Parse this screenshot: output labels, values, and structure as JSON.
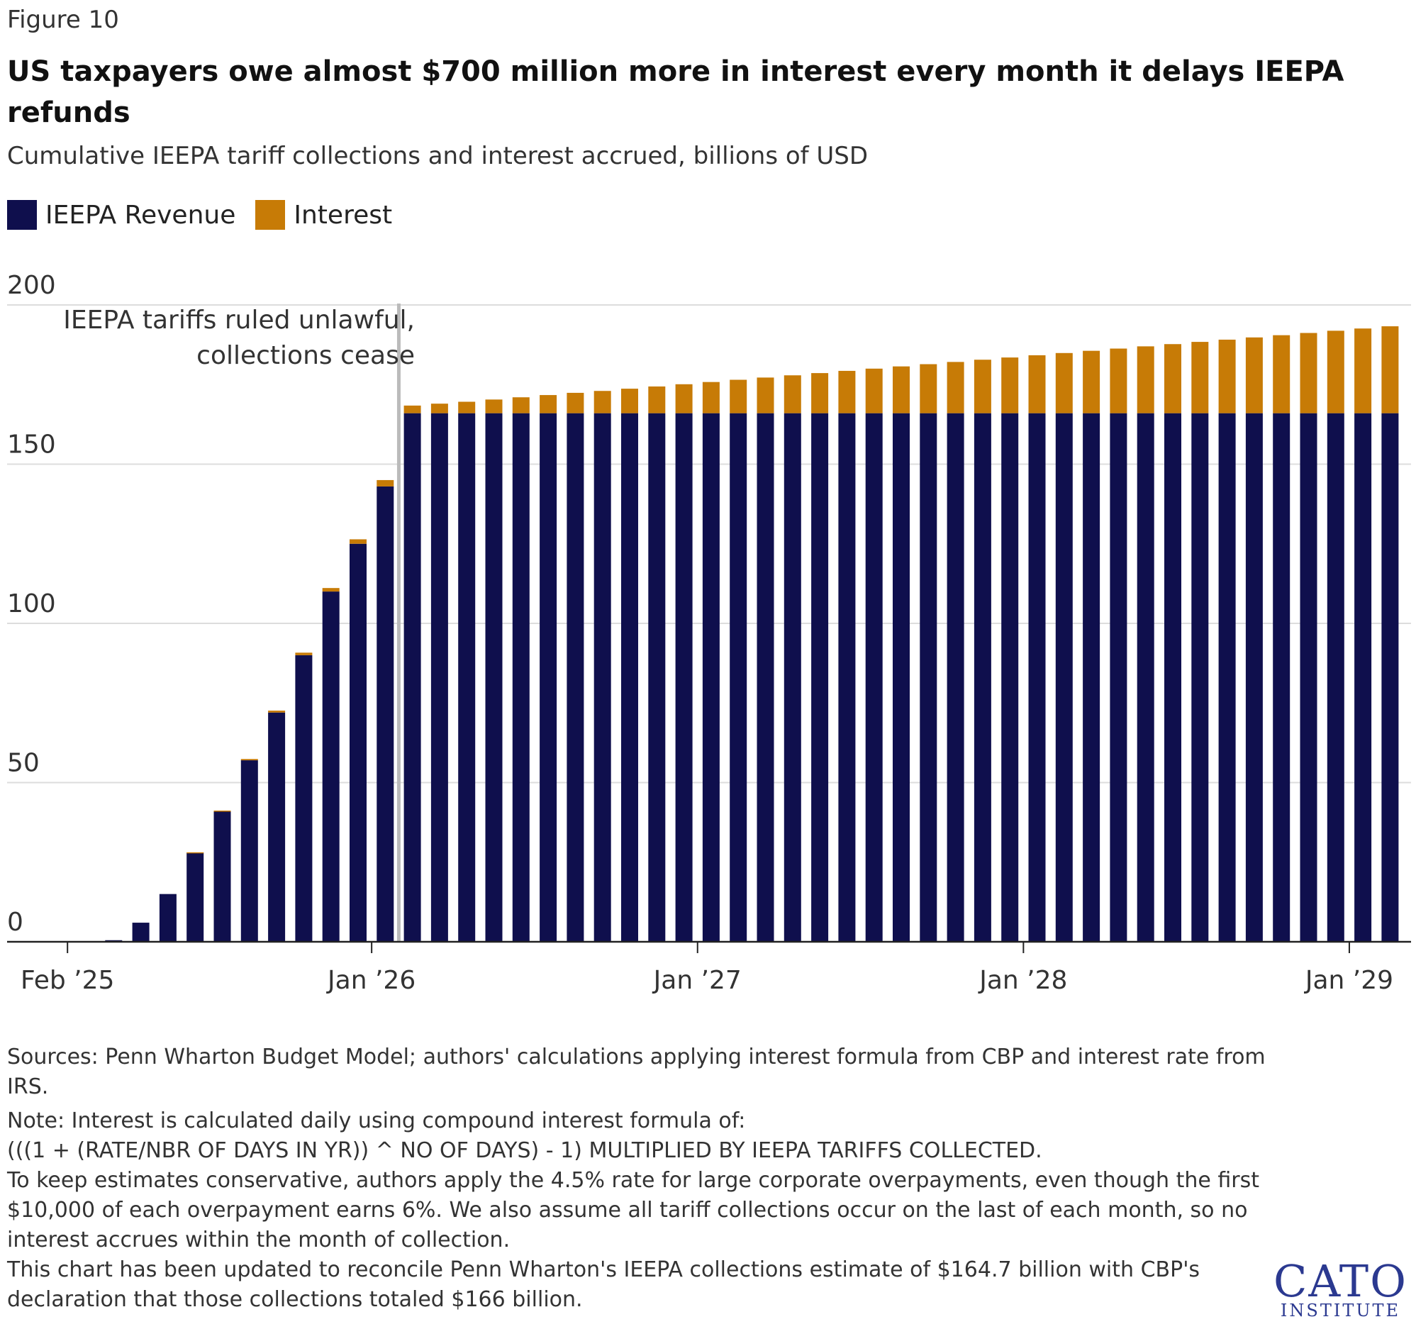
{
  "figure_label": "Figure 10",
  "title": "US taxpayers owe almost $700 million more in interest every month it delays IEEPA refunds",
  "subtitle": "Cumulative IEEPA tariff collections and interest accrued, billions of USD",
  "colors": {
    "revenue": "#0f0f4d",
    "interest": "#c77b06",
    "grid": "#dddddd",
    "axis": "#222222",
    "rule": "#bbbbbb"
  },
  "annotation": {
    "line1": "IEEPA tariffs ruled unlawful,",
    "line2": "collections cease"
  },
  "notes": {
    "sources": "Sources: Penn Wharton Budget Model; authors' calculations applying interest formula from CBP and interest rate from IRS.",
    "note_intro": "Note: Interest is calculated daily using compound interest formula of:",
    "formula": "(((1 + (RATE/NBR OF DAYS IN YR)) ^ NO OF DAYS) - 1) MULTIPLIED BY IEEPA TARIFFS COLLECTED.",
    "conservative": "To keep estimates conservative, authors apply the 4.5% rate for large corporate overpayments, even though the first $10,000 of each overpayment earns 6%. We also assume all tariff collections occur on the last of each month, so no interest accrues within the month of collection.",
    "update": "This chart has been updated to reconcile Penn Wharton's IEEPA collections estimate of $164.7 billion with CBP's declaration that those collections totaled $166 billion."
  },
  "logo": {
    "name": "CATO",
    "sub": "INSTITUTE"
  },
  "chart_data": {
    "type": "bar",
    "stacked": true,
    "ylim": [
      0,
      200
    ],
    "yticks": [
      0,
      50,
      100,
      150,
      200
    ],
    "grid": true,
    "legend_position": "top-left",
    "xtick_labels": [
      {
        "index": 0,
        "label": "Feb ’25"
      },
      {
        "index": 11,
        "label": "Jan ’26"
      },
      {
        "index": 23,
        "label": "Jan ’27"
      },
      {
        "index": 35,
        "label": "Jan ’28"
      },
      {
        "index": 47,
        "label": "Jan ’29"
      }
    ],
    "categories": [
      "Feb 2025",
      "Mar 2025",
      "Apr 2025",
      "May 2025",
      "Jun 2025",
      "Jul 2025",
      "Aug 2025",
      "Sep 2025",
      "Oct 2025",
      "Nov 2025",
      "Dec 2025",
      "Jan 2026",
      "Feb 2026",
      "Mar 2026",
      "Apr 2026",
      "May 2026",
      "Jun 2026",
      "Jul 2026",
      "Aug 2026",
      "Sep 2026",
      "Oct 2026",
      "Nov 2026",
      "Dec 2026",
      "Jan 2027",
      "Feb 2027",
      "Mar 2027",
      "Apr 2027",
      "May 2027",
      "Jun 2027",
      "Jul 2027",
      "Aug 2027",
      "Sep 2027",
      "Oct 2027",
      "Nov 2027",
      "Dec 2027",
      "Jan 2028",
      "Feb 2028",
      "Mar 2028",
      "Apr 2028",
      "May 2028",
      "Jun 2028",
      "Jul 2028",
      "Aug 2028",
      "Sep 2028",
      "Oct 2028",
      "Nov 2028",
      "Dec 2028",
      "Jan 2029",
      "Feb 2029"
    ],
    "series": [
      {
        "name": "IEEPA Revenue",
        "values": [
          0,
          0.5,
          6,
          15,
          28,
          41,
          57,
          72,
          90,
          110,
          125,
          143,
          166,
          166,
          166,
          166,
          166,
          166,
          166,
          166,
          166,
          166,
          166,
          166,
          166,
          166,
          166,
          166,
          166,
          166,
          166,
          166,
          166,
          166,
          166,
          166,
          166,
          166,
          166,
          166,
          166,
          166,
          166,
          166,
          166,
          166,
          166,
          166,
          166
        ]
      },
      {
        "name": "Interest",
        "values": [
          0,
          0,
          0,
          0,
          0.1,
          0.2,
          0.4,
          0.6,
          0.8,
          1.1,
          1.4,
          2.0,
          2.4,
          3.0,
          3.6,
          4.3,
          5.0,
          5.7,
          6.4,
          7.0,
          7.7,
          8.4,
          9.1,
          9.8,
          10.5,
          11.2,
          11.9,
          12.6,
          13.3,
          14.0,
          14.7,
          15.4,
          16.1,
          16.8,
          17.5,
          18.2,
          18.9,
          19.6,
          20.3,
          21.0,
          21.7,
          22.4,
          23.1,
          23.8,
          24.5,
          25.2,
          25.9,
          26.6,
          27.3
        ]
      }
    ],
    "rule_after_index": 12
  }
}
